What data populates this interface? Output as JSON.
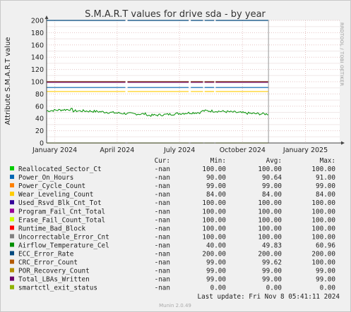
{
  "chart_data": {
    "type": "line",
    "title": "S.M.A.R.T values for drive sda - by year",
    "ylabel": "Attribute S.M.A.R.T value",
    "ylim": [
      0,
      200
    ],
    "yticks": [
      0,
      20,
      40,
      60,
      80,
      100,
      120,
      140,
      160,
      180,
      200
    ],
    "xlim": [
      "2023-12-20",
      "2025-02-20"
    ],
    "xticks": [
      {
        "label": "January 2024",
        "date": "2024-01-01"
      },
      {
        "label": "April 2024",
        "date": "2024-04-01"
      },
      {
        "label": "July 2024",
        "date": "2024-07-01"
      },
      {
        "label": "October 2024",
        "date": "2024-10-01"
      },
      {
        "label": "January 2025",
        "date": "2025-01-01"
      }
    ],
    "data_start": "2023-12-20",
    "data_end": "2024-11-08",
    "now": "2024-11-08",
    "grid": true,
    "side_text": "RRDTOOL / TOBI OETIKER",
    "legend_headers": [
      "Cur:",
      "Min:",
      "Avg:",
      "Max:"
    ],
    "series": [
      {
        "name": "Reallocated_Sector_Ct",
        "color": "#00cc00",
        "cur": "-nan",
        "min": "100.00",
        "avg": "100.00",
        "max": "100.00",
        "value": 100
      },
      {
        "name": "Power_On_Hours",
        "color": "#0066b3",
        "cur": "-nan",
        "min": "90.00",
        "avg": "90.64",
        "max": "91.00",
        "value": 90.6
      },
      {
        "name": "Power_Cycle_Count",
        "color": "#ff8000",
        "cur": "-nan",
        "min": "99.00",
        "avg": "99.00",
        "max": "99.00",
        "value": 99
      },
      {
        "name": "Wear_Leveling_Count",
        "color": "#ffcc00",
        "cur": "-nan",
        "min": "84.00",
        "avg": "84.00",
        "max": "84.00",
        "value": 84
      },
      {
        "name": "Used_Rsvd_Blk_Cnt_Tot",
        "color": "#330099",
        "cur": "-nan",
        "min": "100.00",
        "avg": "100.00",
        "max": "100.00",
        "value": 100
      },
      {
        "name": "Program_Fail_Cnt_Total",
        "color": "#990099",
        "cur": "-nan",
        "min": "100.00",
        "avg": "100.00",
        "max": "100.00",
        "value": 100
      },
      {
        "name": "Erase_Fail_Count_Total",
        "color": "#ccff00",
        "cur": "-nan",
        "min": "100.00",
        "avg": "100.00",
        "max": "100.00",
        "value": 100
      },
      {
        "name": "Runtime_Bad_Block",
        "color": "#ff0000",
        "cur": "-nan",
        "min": "100.00",
        "avg": "100.00",
        "max": "100.00",
        "value": 100
      },
      {
        "name": "Uncorrectable_Error_Cnt",
        "color": "#808080",
        "cur": "-nan",
        "min": "100.00",
        "avg": "100.00",
        "max": "100.00",
        "value": 100
      },
      {
        "name": "Airflow_Temperature_Cel",
        "color": "#008f00",
        "cur": "-nan",
        "min": "40.00",
        "avg": "49.83",
        "max": "60.96",
        "value": 49.83
      },
      {
        "name": "ECC_Error_Rate",
        "color": "#00487d",
        "cur": "-nan",
        "min": "200.00",
        "avg": "200.00",
        "max": "200.00",
        "value": 200
      },
      {
        "name": "CRC_Error_Count",
        "color": "#b35a00",
        "cur": "-nan",
        "min": "99.00",
        "avg": "99.62",
        "max": "100.00",
        "value": 99.6
      },
      {
        "name": "POR_Recovery_Count",
        "color": "#b38f00",
        "cur": "-nan",
        "min": "99.00",
        "avg": "99.00",
        "max": "99.00",
        "value": 99
      },
      {
        "name": "Total_LBAs_Written",
        "color": "#6b006b",
        "cur": "-nan",
        "min": "99.00",
        "avg": "99.00",
        "max": "99.00",
        "value": 99
      },
      {
        "name": "smartctl_exit_status",
        "color": "#8fb300",
        "cur": "-nan",
        "min": "0.00",
        "avg": "0.00",
        "max": "0.00",
        "value": 0
      }
    ]
  },
  "last_update": "Last update:  Fri Nov  8 05:41:11 2024",
  "footer": "Munin 2.0.49"
}
